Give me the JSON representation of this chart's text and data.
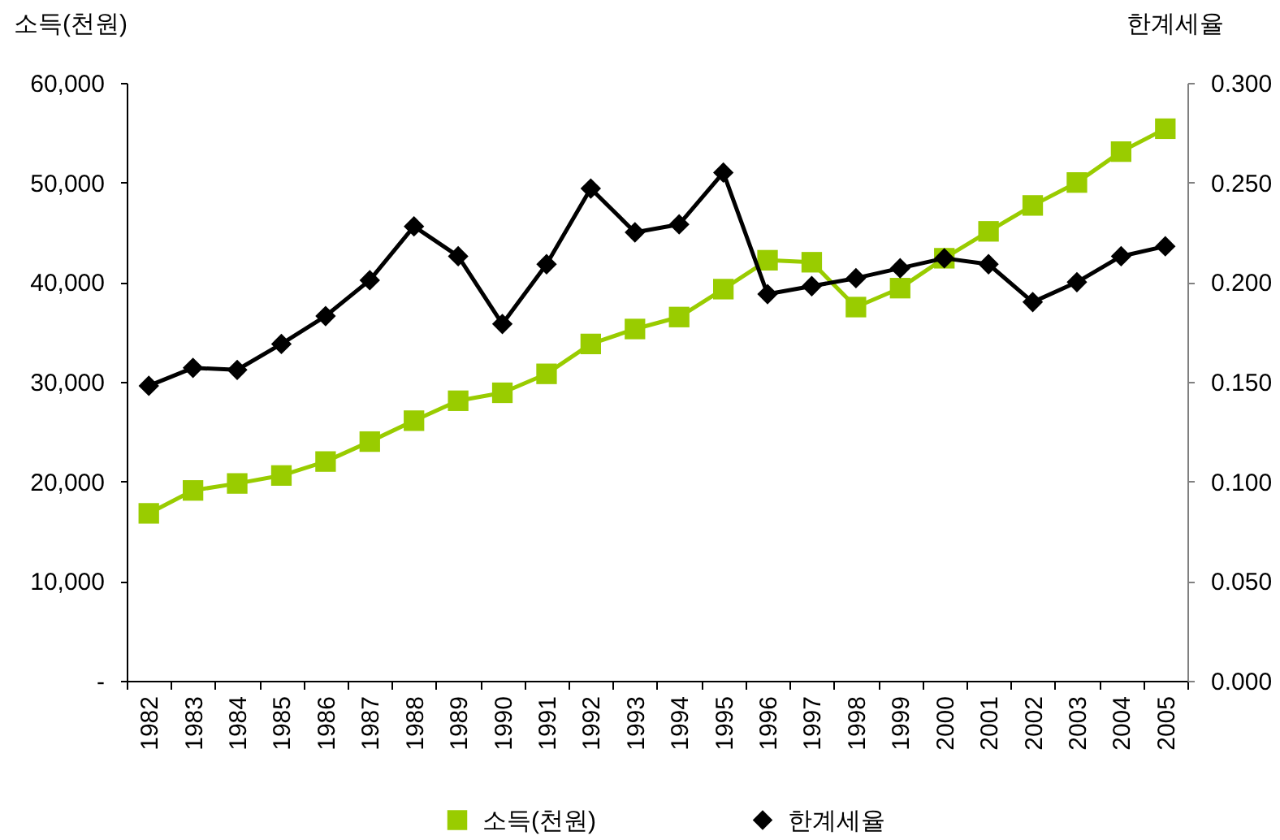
{
  "chart_data": {
    "type": "line",
    "categories": [
      "1982",
      "1983",
      "1984",
      "1985",
      "1986",
      "1987",
      "1988",
      "1989",
      "1990",
      "1991",
      "1992",
      "1993",
      "1994",
      "1995",
      "1996",
      "1997",
      "1998",
      "1999",
      "2000",
      "2001",
      "2002",
      "2003",
      "2004",
      "2005"
    ],
    "ylabel": "소득(천원)",
    "y2label": "한계세율",
    "ylim": [
      0,
      60000
    ],
    "yticks": [
      {
        "value": 0,
        "label": "-"
      },
      {
        "value": 10000,
        "label": "10,000"
      },
      {
        "value": 20000,
        "label": "20,000"
      },
      {
        "value": 30000,
        "label": "30,000"
      },
      {
        "value": 40000,
        "label": "40,000"
      },
      {
        "value": 50000,
        "label": "50,000"
      },
      {
        "value": 60000,
        "label": "60,000"
      }
    ],
    "y2lim": [
      0,
      0.3
    ],
    "y2ticks": [
      {
        "value": 0,
        "label": "0.000"
      },
      {
        "value": 0.05,
        "label": "0.050"
      },
      {
        "value": 0.1,
        "label": "0.100"
      },
      {
        "value": 0.15,
        "label": "0.150"
      },
      {
        "value": 0.2,
        "label": "0.200"
      },
      {
        "value": 0.25,
        "label": "0.250"
      },
      {
        "value": 0.3,
        "label": "0.300"
      }
    ],
    "series": [
      {
        "name": "소득(천원)",
        "color": "#99cc00",
        "marker": "square",
        "values": [
          16800,
          19100,
          19800,
          20600,
          22000,
          24000,
          26100,
          28100,
          28900,
          30800,
          33800,
          35300,
          36500,
          39300,
          42200,
          42000,
          37500,
          39400,
          42400,
          45100,
          47700,
          50000,
          53100,
          55400
        ]
      },
      {
        "name": "한계세율",
        "color": "#000000",
        "marker": "diamond",
        "axis": "y2",
        "values": [
          0.148,
          0.157,
          0.156,
          0.169,
          0.183,
          0.201,
          0.228,
          0.213,
          0.179,
          0.209,
          0.247,
          0.225,
          0.229,
          0.255,
          0.194,
          0.198,
          0.202,
          0.207,
          0.212,
          0.209,
          0.19,
          0.2,
          0.213,
          0.218
        ]
      }
    ],
    "legend": "bottom"
  }
}
